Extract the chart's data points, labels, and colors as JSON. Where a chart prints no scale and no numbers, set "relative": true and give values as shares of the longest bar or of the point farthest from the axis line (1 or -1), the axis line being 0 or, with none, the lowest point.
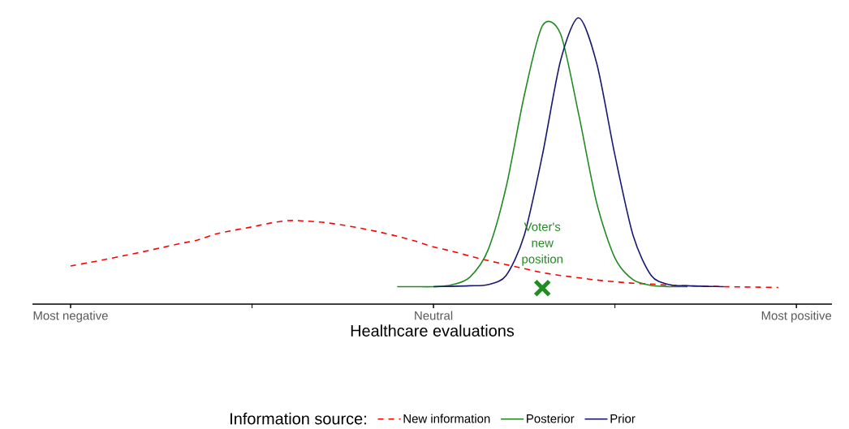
{
  "chart_data": {
    "type": "line",
    "relative": true,
    "xlabel": "Healthcare evaluations",
    "legend_title": "Information source:",
    "legend": "bottom",
    "grid": false,
    "categories": [
      "Most negative",
      null,
      null,
      null,
      null,
      null,
      null,
      null,
      null,
      null,
      null,
      null,
      null,
      null,
      null,
      null,
      null,
      null,
      null,
      null,
      "Neutral",
      null,
      null,
      null,
      null,
      null,
      null,
      null,
      null,
      null,
      null,
      null,
      null,
      null,
      null,
      null,
      null,
      null,
      null,
      null,
      "Most positive"
    ],
    "series": [
      {
        "name": "New information",
        "color": "#ff0000",
        "line_style": "dashed",
        "values": [
          0.133,
          0.145,
          0.157,
          0.17,
          0.183,
          0.197,
          0.211,
          0.224,
          0.245,
          0.258,
          0.27,
          0.283,
          0.292,
          0.29,
          0.285,
          0.276,
          0.265,
          0.252,
          0.237,
          0.22,
          0.2,
          0.185,
          0.168,
          0.152,
          0.138,
          0.124,
          0.11,
          0.1,
          0.092,
          0.084,
          0.078,
          0.073,
          0.07,
          0.066,
          0.064,
          null,
          0.061,
          0.06,
          0.059,
          0.058,
          null
        ]
      },
      {
        "name": "Posterior",
        "color": "#228b22",
        "line_style": "solid",
        "values": [
          null,
          null,
          null,
          null,
          null,
          null,
          null,
          null,
          null,
          null,
          null,
          null,
          null,
          null,
          null,
          null,
          null,
          null,
          0.061,
          0.061,
          0.061,
          0.067,
          0.094,
          0.188,
          0.408,
          0.728,
          0.972,
          0.944,
          0.664,
          0.352,
          0.161,
          0.085,
          0.065,
          0.061,
          0.061,
          null,
          null,
          null,
          null,
          null,
          null
        ]
      },
      {
        "name": "Prior",
        "color": "#191970",
        "line_style": "solid",
        "values": [
          null,
          null,
          null,
          null,
          null,
          null,
          null,
          null,
          null,
          null,
          null,
          null,
          null,
          null,
          null,
          null,
          null,
          null,
          null,
          null,
          0.061,
          0.062,
          0.064,
          0.068,
          0.1,
          0.24,
          0.52,
          0.85,
          1,
          0.84,
          0.52,
          0.24,
          0.1,
          0.068,
          0.064,
          0.062,
          0.061,
          null,
          null,
          null,
          null
        ]
      },
      {
        "type": "scatter",
        "marker": "cross",
        "color": "#228b22",
        "values": [
          null,
          null,
          null,
          null,
          null,
          null,
          null,
          null,
          null,
          null,
          null,
          null,
          null,
          null,
          null,
          null,
          null,
          null,
          null,
          null,
          null,
          null,
          null,
          null,
          null,
          null,
          0.056,
          null,
          null,
          null,
          null,
          null,
          null,
          null,
          null,
          null,
          null,
          null,
          null,
          null,
          null
        ]
      }
    ],
    "annotations": [
      "Voter's new position"
    ]
  }
}
